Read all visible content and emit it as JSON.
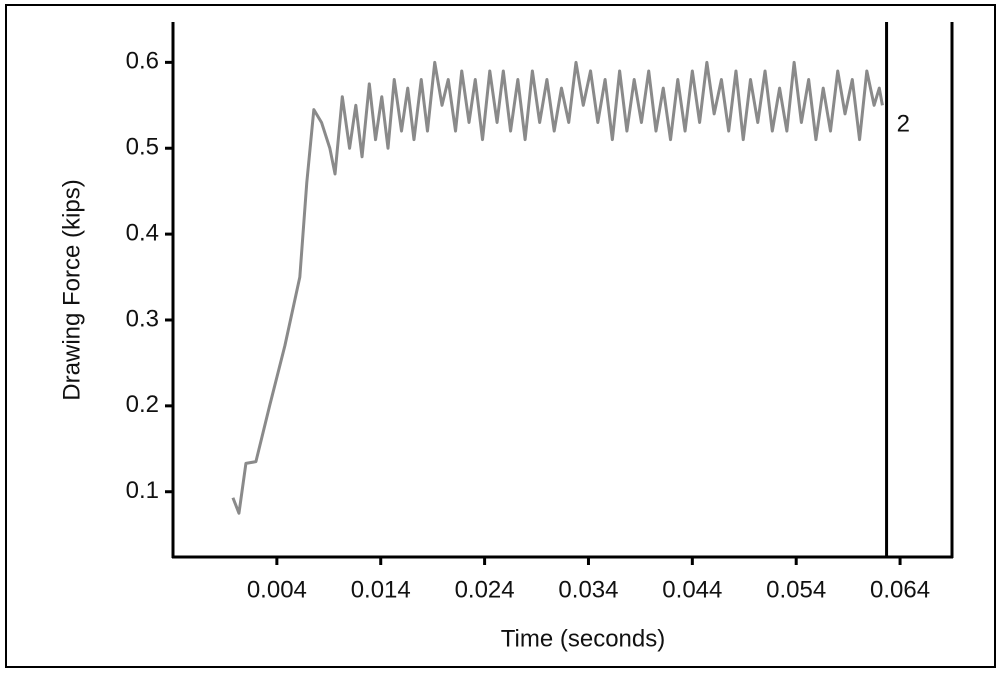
{
  "chart_data": {
    "type": "line",
    "xlabel": "Time (seconds)",
    "ylabel": "Drawing Force (kips)",
    "x": [
      -0.00023,
      0.00035,
      0.00102,
      0.00198,
      0.0033,
      0.00477,
      0.00621,
      0.00688,
      0.00756,
      0.0083,
      0.0091,
      0.0096,
      0.0103,
      0.011,
      0.0116,
      0.0122,
      0.0129,
      0.0135,
      0.0141,
      0.0147,
      0.0153,
      0.016,
      0.0166,
      0.0172,
      0.0179,
      0.0185,
      0.0192,
      0.0199,
      0.0205,
      0.0212,
      0.0218,
      0.0225,
      0.0231,
      0.0238,
      0.0245,
      0.0252,
      0.0258,
      0.0265,
      0.0272,
      0.0279,
      0.0286,
      0.0293,
      0.03,
      0.0307,
      0.0314,
      0.0321,
      0.0328,
      0.0335,
      0.0342,
      0.0349,
      0.0356,
      0.0363,
      0.037,
      0.0377,
      0.0384,
      0.0391,
      0.0398,
      0.0405,
      0.0412,
      0.0419,
      0.0426,
      0.0433,
      0.044,
      0.0447,
      0.0454,
      0.0461,
      0.0468,
      0.0475,
      0.0482,
      0.0489,
      0.0496,
      0.0503,
      0.051,
      0.0517,
      0.0524,
      0.0531,
      0.0538,
      0.0545,
      0.0552,
      0.0559,
      0.0566,
      0.0573,
      0.058,
      0.0587,
      0.0594,
      0.0601,
      0.0608,
      0.0615,
      0.062,
      0.0623
    ],
    "series": [
      {
        "color": "#8a8a8a",
        "values": [
          0.093,
          0.075,
          0.133,
          0.135,
          0.2,
          0.27,
          0.35,
          0.46,
          0.545,
          0.53,
          0.5,
          0.47,
          0.56,
          0.5,
          0.55,
          0.49,
          0.575,
          0.51,
          0.56,
          0.5,
          0.58,
          0.52,
          0.57,
          0.51,
          0.58,
          0.52,
          0.6,
          0.55,
          0.58,
          0.52,
          0.59,
          0.53,
          0.58,
          0.51,
          0.59,
          0.53,
          0.59,
          0.52,
          0.58,
          0.51,
          0.59,
          0.53,
          0.58,
          0.52,
          0.57,
          0.53,
          0.6,
          0.55,
          0.59,
          0.53,
          0.58,
          0.51,
          0.59,
          0.52,
          0.58,
          0.53,
          0.59,
          0.52,
          0.57,
          0.51,
          0.58,
          0.52,
          0.59,
          0.53,
          0.6,
          0.54,
          0.58,
          0.52,
          0.59,
          0.51,
          0.58,
          0.53,
          0.59,
          0.52,
          0.57,
          0.52,
          0.6,
          0.53,
          0.58,
          0.51,
          0.57,
          0.52,
          0.59,
          0.54,
          0.58,
          0.51,
          0.59,
          0.55,
          0.57,
          0.55
        ]
      }
    ],
    "xlim": [
      -0.006,
      0.069
    ],
    "ylim": [
      0.024,
      0.647
    ],
    "xticks": [
      0.004,
      0.014,
      0.024,
      0.034,
      0.044,
      0.054,
      0.064
    ],
    "yticks": [
      0.1,
      0.2,
      0.3,
      0.4,
      0.5,
      0.6
    ],
    "markers": [
      {
        "x": 0.0627,
        "label": "2",
        "color": "#000000"
      }
    ]
  }
}
